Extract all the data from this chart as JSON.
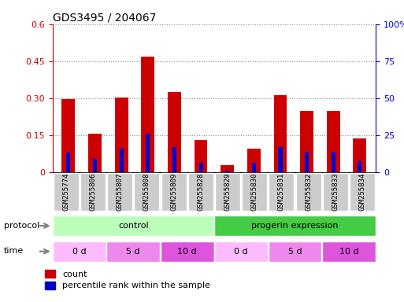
{
  "title": "GDS3495 / 204067",
  "samples": [
    "GSM255774",
    "GSM255806",
    "GSM255807",
    "GSM255808",
    "GSM255809",
    "GSM255828",
    "GSM255829",
    "GSM255830",
    "GSM255831",
    "GSM255832",
    "GSM255833",
    "GSM255834"
  ],
  "count_values": [
    0.297,
    0.155,
    0.302,
    0.468,
    0.325,
    0.13,
    0.028,
    0.095,
    0.312,
    0.248,
    0.248,
    0.138
  ],
  "percentile_values": [
    0.13,
    0.09,
    0.157,
    0.262,
    0.17,
    0.065,
    0.01,
    0.065,
    0.167,
    0.138,
    0.138,
    0.072
  ],
  "ylim_left": [
    0,
    0.6
  ],
  "ylim_right": [
    0,
    100
  ],
  "yticks_left": [
    0,
    0.15,
    0.3,
    0.45,
    0.6
  ],
  "yticks_right": [
    0,
    25,
    50,
    75,
    100
  ],
  "ytick_labels_left": [
    "0",
    "0.15",
    "0.30",
    "0.45",
    "0.6"
  ],
  "ytick_labels_right": [
    "0",
    "25",
    "50",
    "75",
    "100%"
  ],
  "count_color": "#cc0000",
  "percentile_color": "#0000cc",
  "bar_width": 0.5,
  "protocol_groups": [
    {
      "label": "control",
      "start": 0,
      "end": 6,
      "color": "#bbffbb"
    },
    {
      "label": "progerin expression",
      "start": 6,
      "end": 12,
      "color": "#44cc44"
    }
  ],
  "time_groups": [
    {
      "label": "0 d",
      "start": 0,
      "end": 2,
      "color": "#ffbbff"
    },
    {
      "label": "5 d",
      "start": 2,
      "end": 4,
      "color": "#ee88ee"
    },
    {
      "label": "10 d",
      "start": 4,
      "end": 6,
      "color": "#dd55dd"
    },
    {
      "label": "0 d",
      "start": 6,
      "end": 8,
      "color": "#ffbbff"
    },
    {
      "label": "5 d",
      "start": 8,
      "end": 10,
      "color": "#ee88ee"
    },
    {
      "label": "10 d",
      "start": 10,
      "end": 12,
      "color": "#dd55dd"
    }
  ],
  "xlabel_color": "#cc0000",
  "right_axis_color": "#0000cc",
  "grid_color": "#888888",
  "background_color": "#ffffff",
  "legend_count_label": "count",
  "legend_percentile_label": "percentile rank within the sample",
  "sample_box_color": "#cccccc"
}
